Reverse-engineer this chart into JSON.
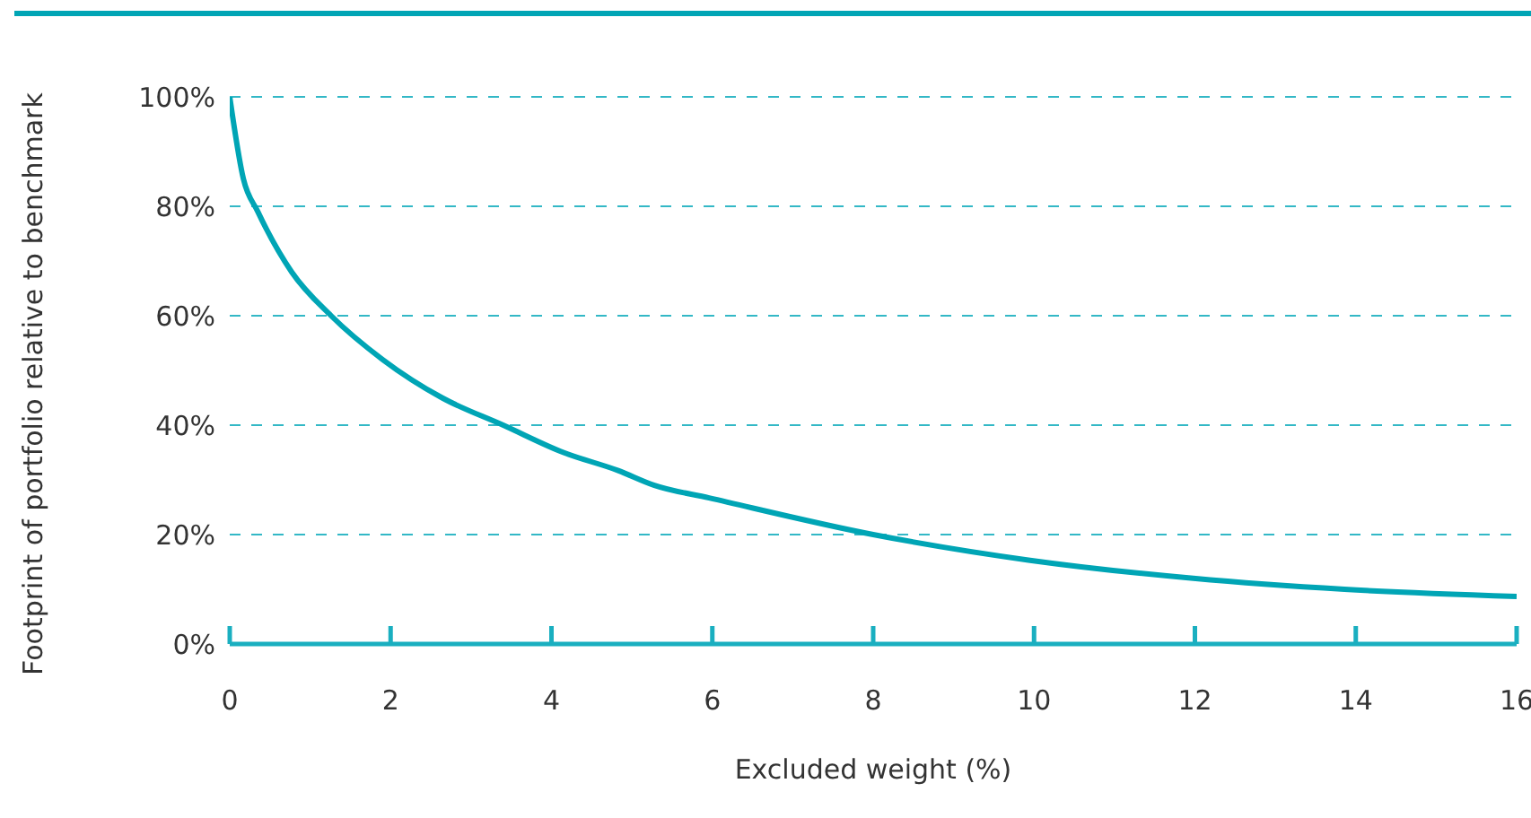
{
  "chart_data": {
    "type": "line",
    "xlabel": "Excluded weight (%)",
    "ylabel": "Footprint of portfolio relative to benchmark",
    "x": [
      0,
      0.17,
      0.35,
      0.77,
      1.26,
      1.9,
      2.64,
      3.4,
      4.15,
      4.83,
      5.28,
      5.96,
      8,
      9.95,
      11.98,
      13.86,
      16
    ],
    "series": [
      {
        "color": "#00a5b5",
        "values": [
          100,
          85,
          79,
          68,
          60,
          52,
          45,
          40,
          35,
          31.7,
          29,
          26.7,
          20,
          15.3,
          12,
          10,
          8.7
        ]
      }
    ],
    "xlim": [
      0,
      16
    ],
    "xticks": [
      0,
      2,
      4,
      6,
      8,
      10,
      12,
      14,
      16
    ],
    "ylim": [
      0,
      100
    ],
    "yticks": [
      {
        "value": 0,
        "label": "0%"
      },
      {
        "value": 20,
        "label": "20%"
      },
      {
        "value": 40,
        "label": "40%"
      },
      {
        "value": 60,
        "label": "60%"
      },
      {
        "value": 80,
        "label": "80%"
      },
      {
        "value": 100,
        "label": "100%"
      }
    ],
    "grid": "y",
    "marker": "none",
    "line_style": "solid",
    "legend": false
  }
}
